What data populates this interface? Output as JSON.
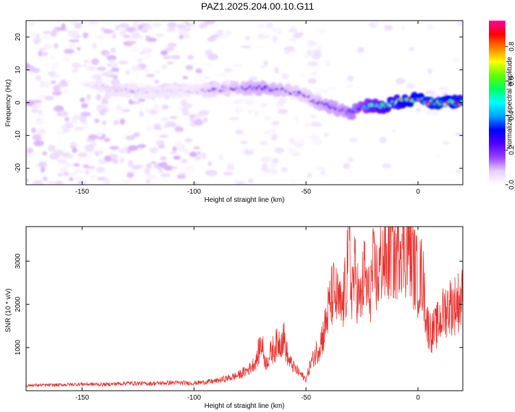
{
  "title": "PAZ1.2025.204.00.10.G11",
  "colorbar": {
    "label": "Normalized spectral amplitude",
    "ticks": [
      "0.0",
      "0.2",
      "0.4",
      "0.6",
      "0.8"
    ],
    "tick_values": [
      0.0,
      0.2,
      0.4,
      0.6,
      0.8
    ],
    "range": [
      0,
      0.95
    ],
    "colors": [
      "#ffffff",
      "#e8d0ff",
      "#9a40ff",
      "#5000ff",
      "#0000ff",
      "#00a0ff",
      "#00ffff",
      "#00ff60",
      "#60ff00",
      "#ffff00",
      "#ff8000",
      "#ff0000",
      "#ff00a0"
    ]
  },
  "line_color": "#e8322e",
  "chart_data": [
    {
      "type": "heatmap",
      "title": "PAZ1.2025.204.00.10.G11",
      "xlabel": "Height of straight line (km)",
      "ylabel": "Frequency (Hz)",
      "xlim": [
        -175,
        20
      ],
      "ylim": [
        -25,
        25
      ],
      "xticks": [
        -150,
        -100,
        -50,
        0
      ],
      "yticks": [
        -20,
        -10,
        0,
        10,
        20
      ],
      "ridge": {
        "x": [
          -145,
          -135,
          -120,
          -100,
          -90,
          -80,
          -70,
          -60,
          -55,
          -50,
          -45,
          -40,
          -35,
          -30,
          -25,
          -20,
          -15,
          -10,
          -5,
          0,
          5,
          10,
          15,
          20
        ],
        "frequency": [
          5,
          4,
          3.5,
          3.5,
          4,
          4.5,
          4.5,
          4,
          3,
          2,
          0,
          -1,
          -2,
          -3,
          -1,
          -1,
          -1,
          0,
          1,
          1,
          0,
          0,
          0,
          0
        ],
        "amplitude": [
          0.1,
          0.12,
          0.1,
          0.1,
          0.18,
          0.25,
          0.28,
          0.25,
          0.22,
          0.2,
          0.25,
          0.3,
          0.3,
          0.35,
          0.45,
          0.6,
          0.7,
          0.75,
          0.9,
          0.9,
          0.95,
          0.95,
          0.9,
          0.85
        ]
      }
    },
    {
      "type": "line",
      "xlabel": "Height of straight line (km)",
      "ylabel": "SNR (10 * v/v)",
      "xlim": [
        -175,
        20
      ],
      "ylim": [
        0,
        3800
      ],
      "xticks": [
        -150,
        -100,
        -50,
        0
      ],
      "yticks": [
        1000,
        2000,
        3000
      ],
      "series": [
        {
          "x": [
            -175,
            -160,
            -150,
            -140,
            -130,
            -120,
            -110,
            -100,
            -90,
            -85,
            -80,
            -75,
            -72,
            -70,
            -68,
            -65,
            -62,
            -60,
            -58,
            -55,
            -52,
            -50,
            -48,
            -45,
            -42,
            -40,
            -38,
            -36,
            -34,
            -32,
            -31,
            -30,
            -28,
            -26,
            -24,
            -22,
            -20,
            -18,
            -16,
            -14,
            -12,
            -10,
            -8,
            -6,
            -4,
            -2,
            0,
            2,
            4,
            6,
            8,
            10,
            12,
            14,
            16,
            18,
            20
          ],
          "y": [
            120,
            130,
            150,
            140,
            170,
            160,
            180,
            170,
            220,
            280,
            350,
            500,
            700,
            1100,
            600,
            900,
            1100,
            1200,
            700,
            500,
            350,
            250,
            600,
            900,
            1300,
            1800,
            2200,
            2000,
            1800,
            2400,
            3700,
            2300,
            2600,
            1900,
            2600,
            2100,
            2700,
            2500,
            3000,
            2800,
            3200,
            2900,
            3500,
            3100,
            3300,
            2800,
            2500,
            2600,
            1500,
            1300,
            1400,
            1600,
            1800,
            1900,
            1900,
            2000,
            2050
          ]
        }
      ]
    }
  ]
}
